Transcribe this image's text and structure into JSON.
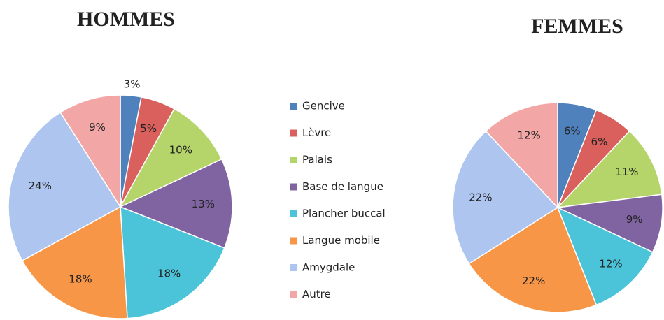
{
  "chart_data": [
    {
      "type": "pie",
      "title": "HOMMES",
      "categories": [
        "Gencive",
        "Lèvre",
        "Palais",
        "Base de langue",
        "Plancher buccal",
        "Langue mobile",
        "Amygdale",
        "Autre"
      ],
      "values": [
        3,
        5,
        10,
        13,
        18,
        18,
        24,
        9
      ],
      "value_labels": [
        "3%",
        "5%",
        "10%",
        "13%",
        "18%",
        "18%",
        "24%",
        "9%"
      ],
      "colors": [
        "#4f81bd",
        "#d9605c",
        "#b5d56a",
        "#8064a2",
        "#4bc3d9",
        "#f79646",
        "#aec6ef",
        "#f2a7a6"
      ]
    },
    {
      "type": "pie",
      "title": "FEMMES",
      "categories": [
        "Gencive",
        "Lèvre",
        "Palais",
        "Base de langue",
        "Plancher buccal",
        "Langue mobile",
        "Amygdale",
        "Autre"
      ],
      "values": [
        6,
        6,
        11,
        9,
        12,
        22,
        22,
        12
      ],
      "value_labels": [
        "6%",
        "6%",
        "11%",
        "9%",
        "12%",
        "22%",
        "22%",
        "12%"
      ],
      "colors": [
        "#4f81bd",
        "#d9605c",
        "#b5d56a",
        "#8064a2",
        "#4bc3d9",
        "#f79646",
        "#aec6ef",
        "#f2a7a6"
      ]
    }
  ]
}
